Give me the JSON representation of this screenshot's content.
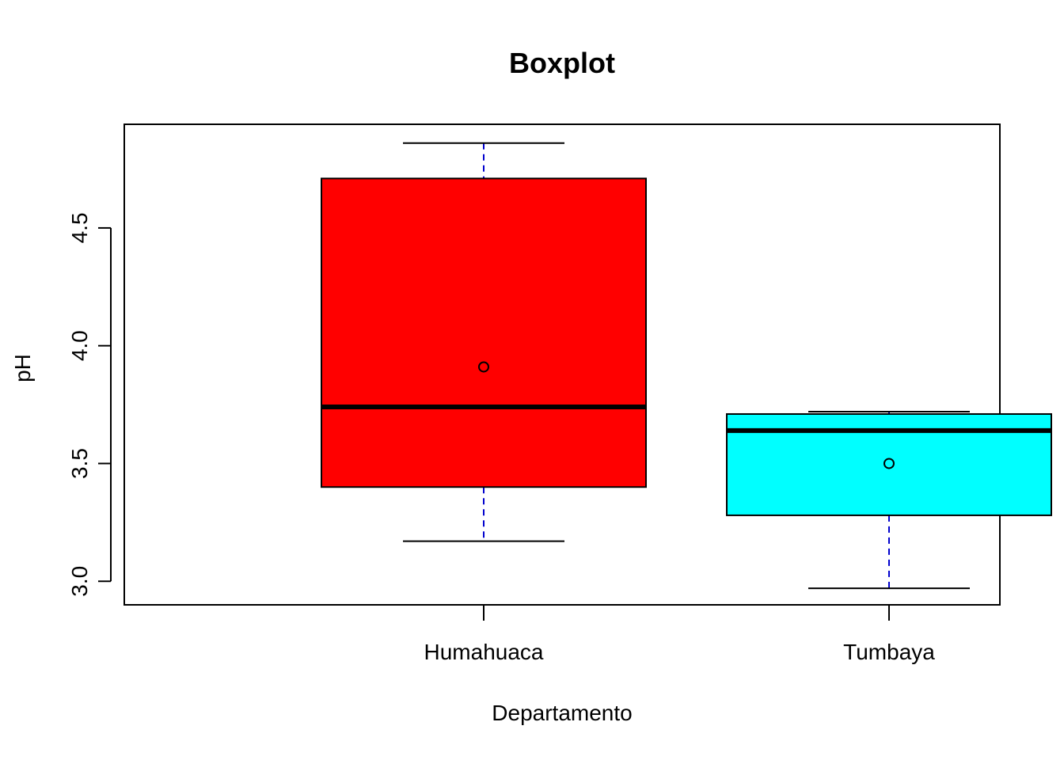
{
  "chart_data": {
    "type": "boxplot",
    "title": "Boxplot",
    "xlabel": "Departamento",
    "ylabel": "pH",
    "ylim": [
      2.9,
      4.94
    ],
    "yticks": [
      3.0,
      3.5,
      4.0,
      4.5
    ],
    "ytick_labels": [
      "3.0",
      "3.5",
      "4.0",
      "4.5"
    ],
    "grid": false,
    "legend": "none",
    "categories": [
      "Humahuaca",
      "Tumbaya"
    ],
    "boxes": [
      {
        "name": "Humahuaca",
        "whisker_low": 3.17,
        "q1": 3.4,
        "median": 3.74,
        "q3": 4.71,
        "whisker_high": 4.86,
        "mean": 3.91,
        "fill": "#ff0000"
      },
      {
        "name": "Tumbaya",
        "whisker_low": 2.97,
        "q1": 3.28,
        "median": 3.64,
        "q3": 3.71,
        "whisker_high": 3.72,
        "mean": 3.5,
        "fill": "#00ffff"
      }
    ],
    "whisker_color": "#0000cd"
  }
}
